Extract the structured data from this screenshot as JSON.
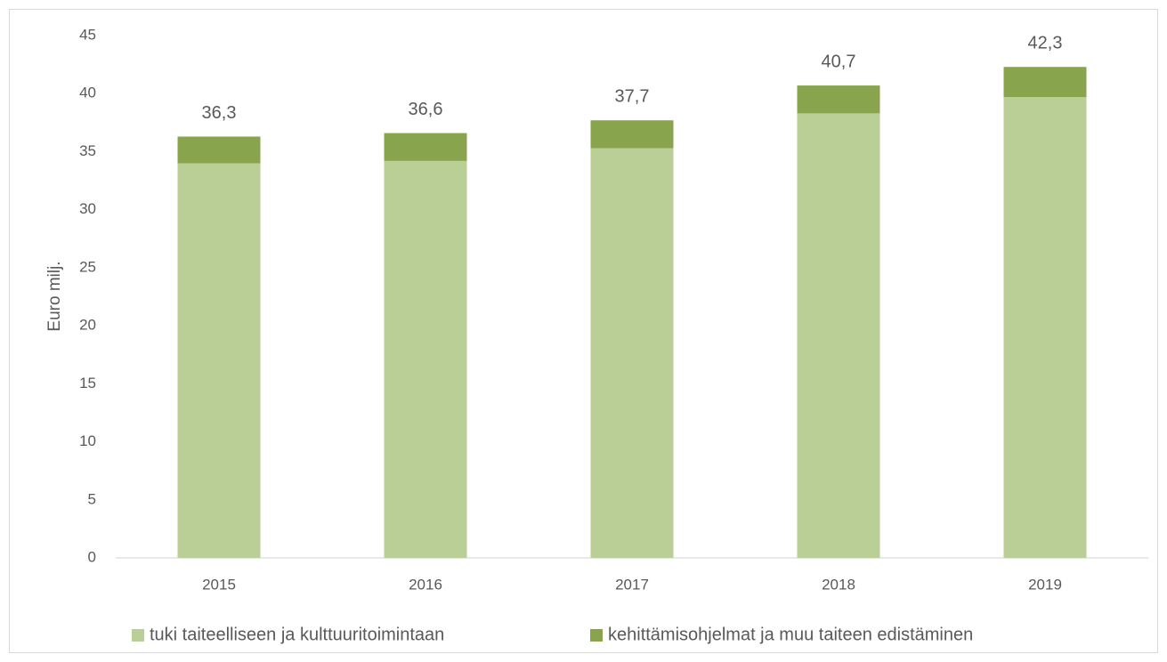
{
  "chart_data": {
    "type": "stacked_bar",
    "y_label": "Euro milj.",
    "categories": [
      "2015",
      "2016",
      "2017",
      "2018",
      "2019"
    ],
    "series": [
      {
        "name": "tuki taiteelliseen ja kulttuuritoimintaan",
        "color": "#b9cf96",
        "values": [
          34.0,
          34.2,
          35.3,
          38.3,
          39.7
        ]
      },
      {
        "name": "kehittämisohjelmat ja muu taiteen edistäminen",
        "color": "#88a54e",
        "values": [
          2.3,
          2.4,
          2.4,
          2.4,
          2.6
        ]
      }
    ],
    "totals": [
      36.3,
      36.6,
      37.7,
      40.7,
      42.3
    ],
    "total_labels": [
      "36,3",
      "36,6",
      "37,7",
      "40,7",
      "42,3"
    ],
    "ylim": [
      0,
      45
    ],
    "yticks": [
      0,
      5,
      10,
      15,
      20,
      25,
      30,
      35,
      40,
      45
    ],
    "grid": false,
    "legend": "bottom"
  }
}
